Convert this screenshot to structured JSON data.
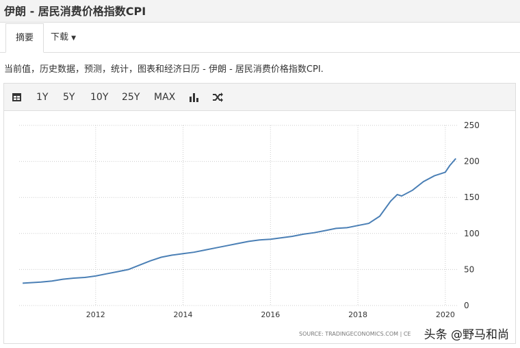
{
  "header": {
    "title": "伊朗 - 居民消费价格指数CPI"
  },
  "tabs": [
    "摘要",
    "下载"
  ],
  "description": "当前值，历史数据，预测，统计，图表和经济日历 - 伊朗 - 居民消费价格指数CPI.",
  "toolbar": [
    "1Y",
    "5Y",
    "10Y",
    "25Y",
    "MAX"
  ],
  "chart_data": {
    "type": "line",
    "x": [
      2010.33,
      2010.75,
      2011.0,
      2011.25,
      2011.5,
      2011.75,
      2012.0,
      2012.25,
      2012.5,
      2012.75,
      2013.0,
      2013.25,
      2013.5,
      2013.75,
      2014.0,
      2014.25,
      2014.5,
      2014.75,
      2015.0,
      2015.25,
      2015.5,
      2015.75,
      2016.0,
      2016.25,
      2016.5,
      2016.75,
      2017.0,
      2017.25,
      2017.5,
      2017.75,
      2018.0,
      2018.25,
      2018.5,
      2018.75,
      2018.9,
      2019.0,
      2019.25,
      2019.5,
      2019.75,
      2020.0,
      2020.1,
      2020.24
    ],
    "series": [
      {
        "color": "#4a7fb5",
        "values": [
          31,
          32.5,
          34,
          36.5,
          38,
          39,
          41,
          44,
          47,
          50,
          56,
          62,
          67,
          70,
          72,
          74,
          77,
          80,
          83,
          86,
          89,
          91,
          92,
          94,
          96,
          99,
          101,
          104,
          107,
          108,
          111,
          114,
          124,
          145,
          154,
          152,
          160,
          172,
          180,
          185,
          194,
          204
        ]
      }
    ],
    "xlim": [
      2010.25,
      2020.3
    ],
    "xticks": [
      2012,
      2014,
      2016,
      2018,
      2020
    ],
    "ylim": [
      0,
      250
    ],
    "yticks": [
      0,
      50,
      100,
      150,
      200,
      250
    ],
    "grid": true,
    "source": "SOURCE: TRADINGECONOMICS.COM | CE"
  },
  "watermark": "头条 @野马和尚"
}
